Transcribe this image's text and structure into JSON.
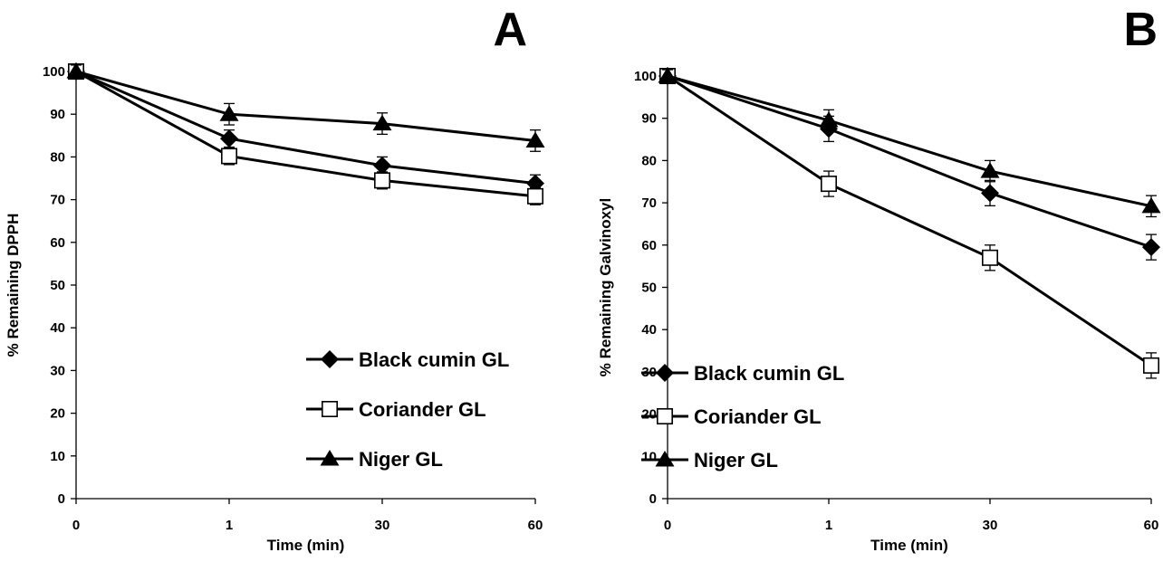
{
  "chart_data": [
    {
      "type": "line",
      "panel": "A",
      "xlabel": "Time (min)",
      "ylabel": "% Remaining DPPH",
      "categories": [
        "0",
        "1",
        "30",
        "60"
      ],
      "ylim": [
        0,
        100
      ],
      "yticks": [
        0,
        10,
        20,
        30,
        40,
        50,
        60,
        70,
        80,
        90,
        100
      ],
      "grid": false,
      "legend_position": "bottom-right",
      "series": [
        {
          "name": "Black cumin GL",
          "marker": "diamond",
          "values": [
            100,
            84.3,
            78.0,
            73.8
          ],
          "errors": [
            1.5,
            2.0,
            2.0,
            2.0
          ]
        },
        {
          "name": "Coriander GL",
          "marker": "open-square",
          "values": [
            100,
            80.2,
            74.5,
            70.8
          ],
          "errors": [
            1.5,
            2.0,
            2.0,
            2.0
          ]
        },
        {
          "name": "Niger GL",
          "marker": "triangle",
          "values": [
            100,
            90.0,
            87.8,
            83.8
          ],
          "errors": [
            1.5,
            2.5,
            2.5,
            2.5
          ]
        }
      ]
    },
    {
      "type": "line",
      "panel": "B",
      "xlabel": "Time (min)",
      "ylabel": "% Remaining Galvinoxyl",
      "categories": [
        "0",
        "1",
        "30",
        "60"
      ],
      "ylim": [
        0,
        100
      ],
      "yticks": [
        0,
        10,
        20,
        30,
        40,
        50,
        60,
        70,
        80,
        90,
        100
      ],
      "grid": false,
      "legend_position": "bottom-left",
      "series": [
        {
          "name": "Black cumin GL",
          "marker": "diamond",
          "values": [
            100,
            87.5,
            72.3,
            59.5
          ],
          "errors": [
            1.5,
            3.0,
            3.0,
            3.0
          ]
        },
        {
          "name": "Coriander GL",
          "marker": "open-square",
          "values": [
            100,
            74.5,
            57.0,
            31.5
          ],
          "errors": [
            1.5,
            3.0,
            3.0,
            3.0
          ]
        },
        {
          "name": "Niger GL",
          "marker": "triangle",
          "values": [
            100,
            89.5,
            77.5,
            69.2
          ],
          "errors": [
            1.5,
            2.5,
            2.5,
            2.5
          ]
        }
      ]
    }
  ]
}
